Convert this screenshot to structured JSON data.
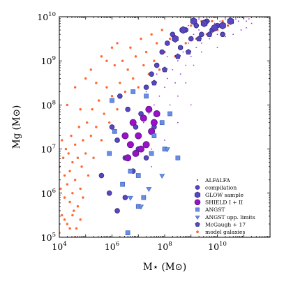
{
  "chart_data": {
    "type": "scatter",
    "x_scale": "log",
    "y_scale": "log",
    "xlim": [
      10000,
      1000000000000.0
    ],
    "ylim": [
      100000,
      10000000000.0
    ],
    "xlabel": "M⋆ (M⊙)",
    "ylabel": "Mg (M⊙)",
    "x_ticks": [
      {
        "value": 10000,
        "base": "10",
        "exp": "4"
      },
      {
        "value": 1000000,
        "base": "10",
        "exp": "6"
      },
      {
        "value": 100000000,
        "base": "10",
        "exp": "8"
      },
      {
        "value": 10000000000,
        "base": "10",
        "exp": "10"
      }
    ],
    "y_ticks": [
      {
        "value": 100000,
        "base": "10",
        "exp": "5"
      },
      {
        "value": 1000000,
        "base": "10",
        "exp": "6"
      },
      {
        "value": 10000000,
        "base": "10",
        "exp": "7"
      },
      {
        "value": 100000000,
        "base": "10",
        "exp": "8"
      },
      {
        "value": 1000000000,
        "base": "10",
        "exp": "9"
      },
      {
        "value": 10000000000,
        "base": "10",
        "exp": "10"
      }
    ],
    "legend_position": "lower-right",
    "series": [
      {
        "name": "model galaxies",
        "marker": "circle-small",
        "color": "#ff4c0c",
        "log_points": [
          [
            4.0,
            6.6
          ],
          [
            4.05,
            6.1
          ],
          [
            4.1,
            7.2
          ],
          [
            4.1,
            5.5
          ],
          [
            4.15,
            6.8
          ],
          [
            4.2,
            5.9
          ],
          [
            4.2,
            6.4
          ],
          [
            4.25,
            7.0
          ],
          [
            4.3,
            6.2
          ],
          [
            4.3,
            5.3
          ],
          [
            4.35,
            6.9
          ],
          [
            4.4,
            6.5
          ],
          [
            4.4,
            5.8
          ],
          [
            4.45,
            7.3
          ],
          [
            4.5,
            6.0
          ],
          [
            4.5,
            6.7
          ],
          [
            4.55,
            5.6
          ],
          [
            4.6,
            7.1
          ],
          [
            4.6,
            6.3
          ],
          [
            4.65,
            5.2
          ],
          [
            4.7,
            6.8
          ],
          [
            4.75,
            7.5
          ],
          [
            4.8,
            6.1
          ],
          [
            4.85,
            6.6
          ],
          [
            4.9,
            7.2
          ],
          [
            5.0,
            6.9
          ],
          [
            5.05,
            7.6
          ],
          [
            5.1,
            6.4
          ],
          [
            5.2,
            7.3
          ],
          [
            5.25,
            7.9
          ],
          [
            5.3,
            6.8
          ],
          [
            5.4,
            7.5
          ],
          [
            5.5,
            8.1
          ],
          [
            5.6,
            7.2
          ],
          [
            5.7,
            7.8
          ],
          [
            5.8,
            8.4
          ],
          [
            5.9,
            7.6
          ],
          [
            6.0,
            8.2
          ],
          [
            6.1,
            8.9
          ],
          [
            6.2,
            7.9
          ],
          [
            6.3,
            8.5
          ],
          [
            6.4,
            9.0
          ],
          [
            6.5,
            8.3
          ],
          [
            6.6,
            8.8
          ],
          [
            6.7,
            9.3
          ],
          [
            6.8,
            8.6
          ],
          [
            6.9,
            9.1
          ],
          [
            7.0,
            8.4
          ],
          [
            7.1,
            9.5
          ],
          [
            7.2,
            8.9
          ],
          [
            7.3,
            9.2
          ],
          [
            7.4,
            8.7
          ],
          [
            7.5,
            9.6
          ],
          [
            7.6,
            9.0
          ],
          [
            7.7,
            9.4
          ],
          [
            7.8,
            8.8
          ],
          [
            7.9,
            9.7
          ],
          [
            8.0,
            9.2
          ],
          [
            8.2,
            9.5
          ],
          [
            8.4,
            9.1
          ],
          [
            8.6,
            9.7
          ],
          [
            8.8,
            9.4
          ],
          [
            9.0,
            9.8
          ],
          [
            9.2,
            9.5
          ],
          [
            9.4,
            9.9
          ],
          [
            9.6,
            9.6
          ],
          [
            9.8,
            9.9
          ],
          [
            10.0,
            9.7
          ],
          [
            10.2,
            9.9
          ],
          [
            10.4,
            9.8
          ],
          [
            4.0,
            5.1
          ],
          [
            4.1,
            4.8
          ],
          [
            4.2,
            5.4
          ],
          [
            4.3,
            4.9
          ],
          [
            4.4,
            5.2
          ],
          [
            4.5,
            5.5
          ],
          [
            4.6,
            5.0
          ],
          [
            4.7,
            5.7
          ],
          [
            4.8,
            5.4
          ],
          [
            4.9,
            5.9
          ],
          [
            4.3,
            8.0
          ],
          [
            4.6,
            8.4
          ],
          [
            4.8,
            7.9
          ],
          [
            5.0,
            8.6
          ],
          [
            5.2,
            8.8
          ],
          [
            5.4,
            8.5
          ],
          [
            5.6,
            9.1
          ],
          [
            5.8,
            9.0
          ],
          [
            6.0,
            9.3
          ],
          [
            6.2,
            9.4
          ]
        ]
      },
      {
        "name": "ALFALFA",
        "marker": "dot",
        "color": "#9b30d9",
        "log_points": [
          [
            7.0,
            7.3
          ],
          [
            7.2,
            7.6
          ],
          [
            7.4,
            7.8
          ],
          [
            7.5,
            7.0
          ],
          [
            7.6,
            8.0
          ],
          [
            7.8,
            8.2
          ],
          [
            7.9,
            7.6
          ],
          [
            8.0,
            8.4
          ],
          [
            8.1,
            8.6
          ],
          [
            8.2,
            8.0
          ],
          [
            8.3,
            8.8
          ],
          [
            8.4,
            8.5
          ],
          [
            8.5,
            9.0
          ],
          [
            8.6,
            8.7
          ],
          [
            8.7,
            9.2
          ],
          [
            8.8,
            8.9
          ],
          [
            8.9,
            9.4
          ],
          [
            9.0,
            9.1
          ],
          [
            9.1,
            9.6
          ],
          [
            9.2,
            9.3
          ],
          [
            9.3,
            9.7
          ],
          [
            9.4,
            9.4
          ],
          [
            9.5,
            9.8
          ],
          [
            9.6,
            9.6
          ],
          [
            9.7,
            9.9
          ],
          [
            9.8,
            9.7
          ],
          [
            9.9,
            9.85
          ],
          [
            10.0,
            9.6
          ],
          [
            10.1,
            9.9
          ],
          [
            10.2,
            9.75
          ],
          [
            10.3,
            9.95
          ],
          [
            10.4,
            9.8
          ],
          [
            10.5,
            9.9
          ],
          [
            10.6,
            9.85
          ],
          [
            10.7,
            9.95
          ],
          [
            10.8,
            9.9
          ],
          [
            11.0,
            9.97
          ],
          [
            11.1,
            9.9
          ],
          [
            11.2,
            9.95
          ],
          [
            11.3,
            9.85
          ],
          [
            8.5,
            8.2
          ],
          [
            8.8,
            8.5
          ],
          [
            9.1,
            8.9
          ],
          [
            9.4,
            9.2
          ],
          [
            9.7,
            9.5
          ],
          [
            10.0,
            9.3
          ],
          [
            10.3,
            9.55
          ],
          [
            10.6,
            9.6
          ],
          [
            10.9,
            9.7
          ],
          [
            11.1,
            9.75
          ],
          [
            7.3,
            8.3
          ],
          [
            7.7,
            8.7
          ],
          [
            8.1,
            9.1
          ],
          [
            8.5,
            9.5
          ],
          [
            8.9,
            9.8
          ],
          [
            9.3,
            9.95
          ],
          [
            7.5,
            6.6
          ],
          [
            8.0,
            7.2
          ],
          [
            8.5,
            7.6
          ],
          [
            9.0,
            8.0
          ]
        ]
      },
      {
        "name": "compilation",
        "marker": "circle",
        "color": "#5b46c2",
        "log_points": [
          [
            6.3,
            8.2
          ],
          [
            6.6,
            7.9
          ],
          [
            6.9,
            7.5
          ],
          [
            7.1,
            7.8
          ],
          [
            7.3,
            8.4
          ],
          [
            7.5,
            8.7
          ],
          [
            7.7,
            8.9
          ],
          [
            7.9,
            9.2
          ],
          [
            8.1,
            9.4
          ],
          [
            8.3,
            9.6
          ],
          [
            8.6,
            9.3
          ],
          [
            8.8,
            9.7
          ],
          [
            9.0,
            9.5
          ],
          [
            9.2,
            9.8
          ],
          [
            9.4,
            9.6
          ],
          [
            9.6,
            9.9
          ],
          [
            9.8,
            9.7
          ],
          [
            10.0,
            9.8
          ],
          [
            10.2,
            9.6
          ],
          [
            6.0,
            7.5
          ],
          [
            6.2,
            7.2
          ],
          [
            6.5,
            6.8
          ],
          [
            6.8,
            6.5
          ],
          [
            7.0,
            7.0
          ],
          [
            7.3,
            6.8
          ],
          [
            7.6,
            7.5
          ],
          [
            5.6,
            6.4
          ],
          [
            5.9,
            6.0
          ],
          [
            6.2,
            5.6
          ],
          [
            6.5,
            5.9
          ]
        ]
      },
      {
        "name": "GLOW sample",
        "marker": "hexagon",
        "color": "#5b46c2",
        "log_points": [
          [
            8.4,
            9.5
          ],
          [
            8.7,
            9.7
          ],
          [
            9.1,
            9.9
          ],
          [
            9.5,
            9.85
          ],
          [
            9.9,
            9.75
          ],
          [
            10.2,
            9.8
          ],
          [
            10.5,
            9.9
          ]
        ]
      },
      {
        "name": "SHIELD I + II",
        "marker": "circle-large",
        "color": "#9b10c8",
        "log_points": [
          [
            6.5,
            7.3
          ],
          [
            6.7,
            7.1
          ],
          [
            6.8,
            7.6
          ],
          [
            7.0,
            7.3
          ],
          [
            7.2,
            7.7
          ],
          [
            7.3,
            7.1
          ],
          [
            7.5,
            7.4
          ],
          [
            7.4,
            7.9
          ],
          [
            7.6,
            7.6
          ],
          [
            6.9,
            6.9
          ],
          [
            7.1,
            7.0
          ],
          [
            7.7,
            7.8
          ],
          [
            6.6,
            6.8
          ]
        ]
      },
      {
        "name": "ANGST",
        "marker": "square",
        "color": "#6a8ee6",
        "log_points": [
          [
            5.9,
            6.9
          ],
          [
            6.1,
            7.4
          ],
          [
            6.4,
            6.2
          ],
          [
            6.7,
            6.5
          ],
          [
            7.0,
            6.4
          ],
          [
            7.2,
            5.9
          ],
          [
            7.6,
            7.3
          ],
          [
            7.9,
            7.6
          ],
          [
            8.2,
            7.8
          ],
          [
            8.5,
            6.8
          ],
          [
            7.3,
            8.2
          ],
          [
            6.8,
            8.3
          ],
          [
            6.0,
            8.1
          ],
          [
            7.0,
            5.7
          ],
          [
            6.6,
            5.1
          ],
          [
            7.5,
            6.9
          ],
          [
            8.0,
            7.0
          ]
        ]
      },
      {
        "name": "ANGST upp. limits",
        "marker": "triangle-down",
        "color": "#6a8ee6",
        "log_points": [
          [
            6.7,
            5.9
          ],
          [
            7.1,
            5.7
          ],
          [
            7.4,
            6.1
          ],
          [
            7.9,
            6.4
          ],
          [
            8.1,
            7.0
          ]
        ]
      },
      {
        "name": "McGaugh + 17",
        "marker": "pentagon",
        "color": "#5b46c2",
        "log_points": [
          [
            7.6,
            8.5
          ],
          [
            8.0,
            8.8
          ],
          [
            8.5,
            9.1
          ],
          [
            8.9,
            9.2
          ],
          [
            9.3,
            9.5
          ],
          [
            9.7,
            9.6
          ]
        ]
      }
    ]
  }
}
